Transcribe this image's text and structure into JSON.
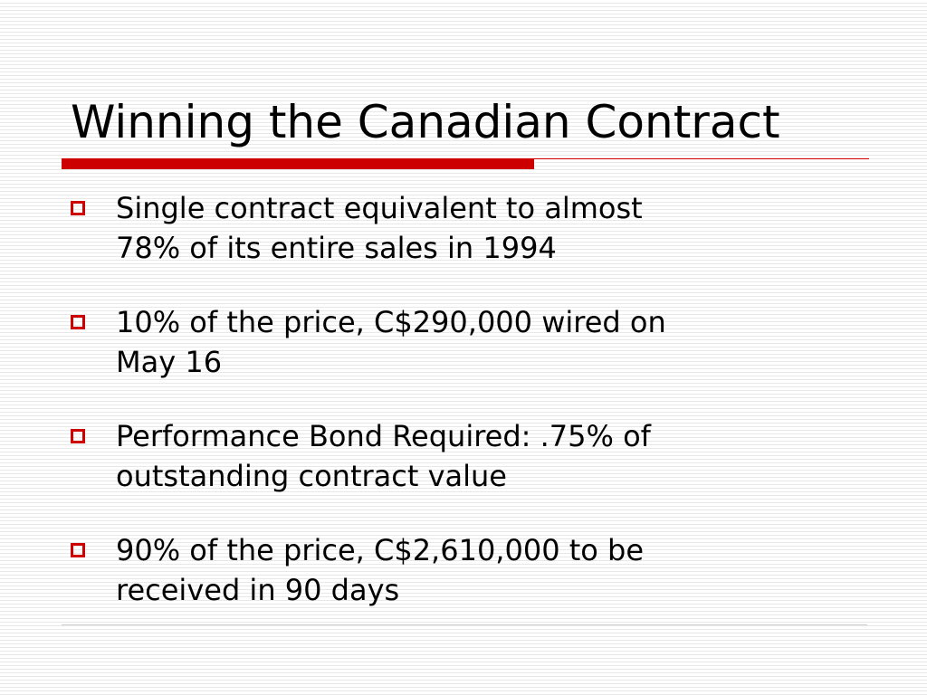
{
  "slide": {
    "title": "Winning the Canadian Contract",
    "accent_color": "#cc0000",
    "bullet_icon": "hollow-square-bullet-icon",
    "bullets": [
      {
        "line1": "Single contract equivalent to almost",
        "line2": "78% of its entire sales in 1994"
      },
      {
        "line1": "10% of the price, C$290,000 wired on",
        "line2": "May 16"
      },
      {
        "line1": "Performance Bond Required: .75% of",
        "line2": "outstanding contract value"
      },
      {
        "line1": "90% of the price, C$2,610,000 to be",
        "line2": "received in 90 days"
      }
    ]
  }
}
